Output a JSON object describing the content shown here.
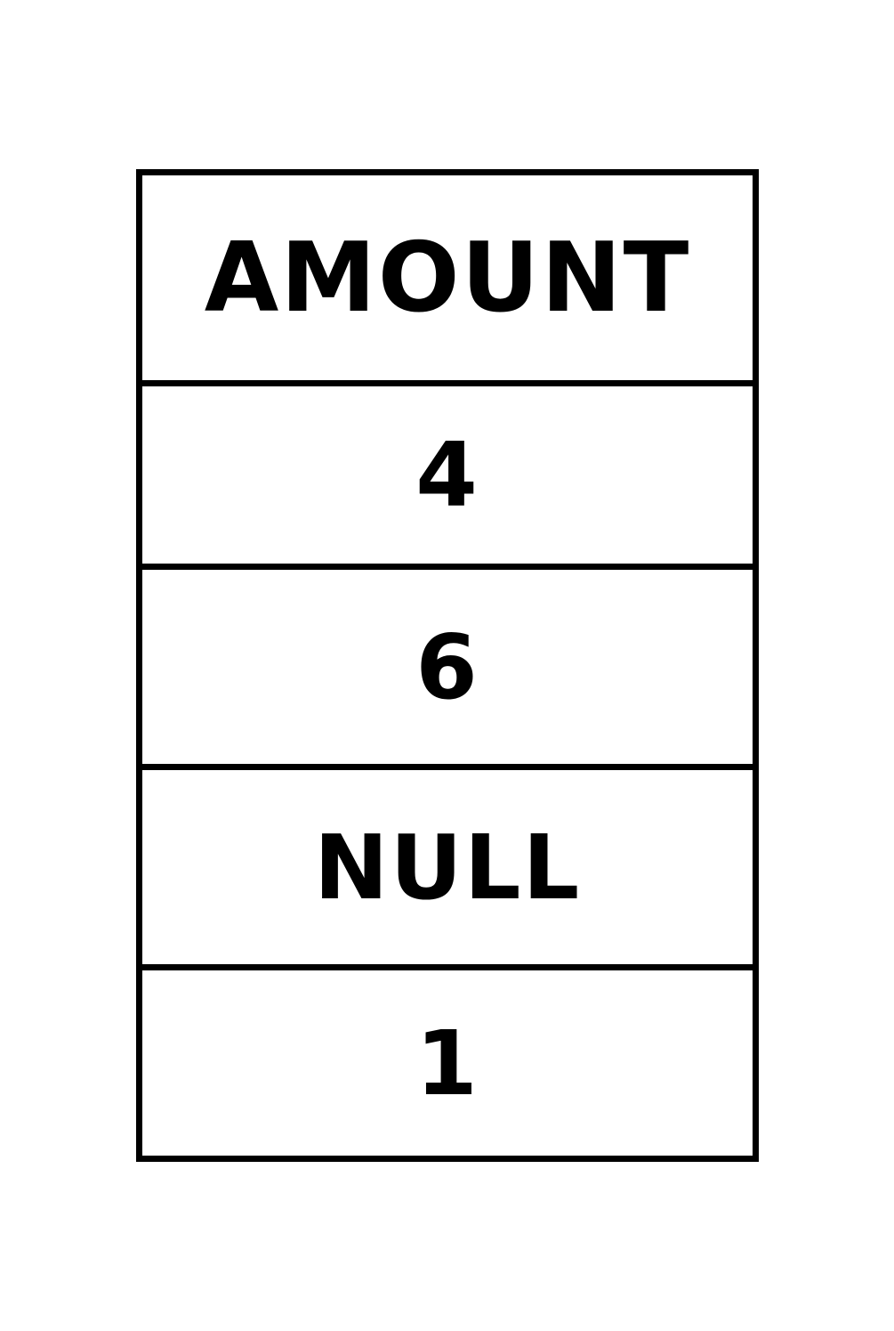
{
  "table": {
    "header": "AMOUNT",
    "rows": [
      "4",
      "6",
      "NULL",
      "1"
    ]
  }
}
